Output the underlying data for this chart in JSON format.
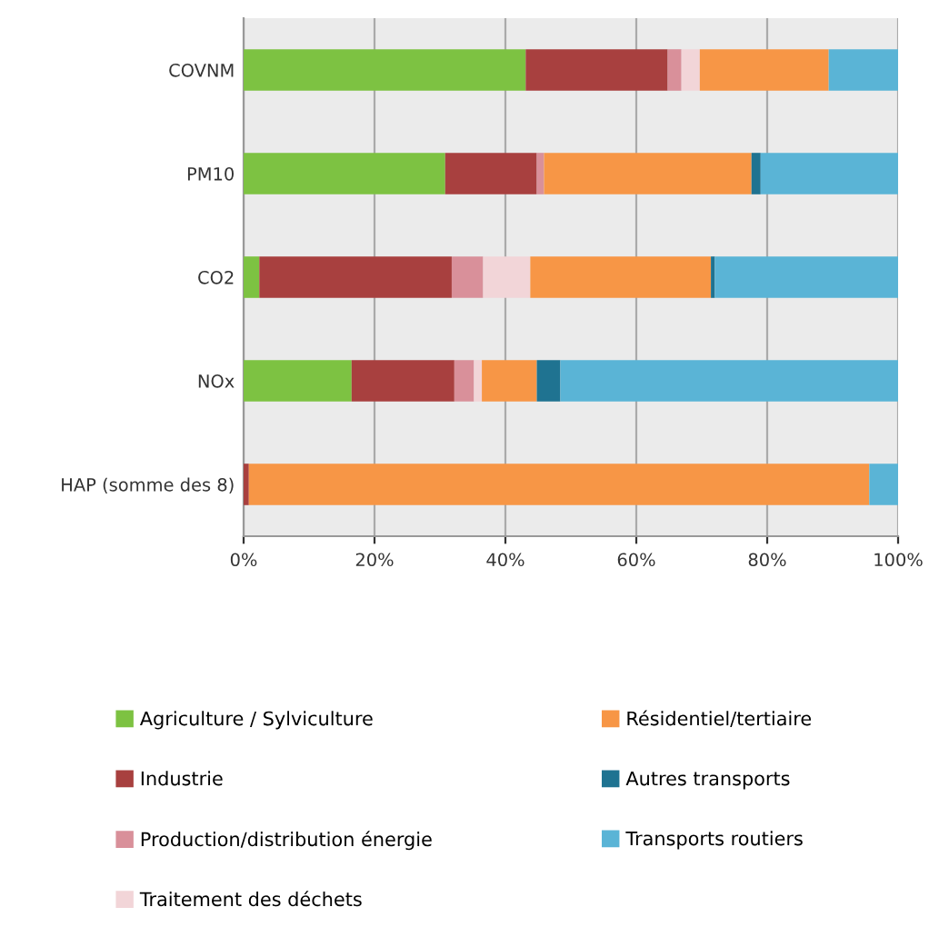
{
  "chart_data": {
    "type": "bar",
    "orientation": "horizontal",
    "stacked": true,
    "categories": [
      "COVNM",
      "PM10",
      "CO2",
      "NOx",
      "HAP (somme des 8)"
    ],
    "series": [
      {
        "name": "Agriculture / Sylviculture",
        "color": "#7dc242",
        "values": [
          43.1,
          30.8,
          2.4,
          16.5,
          0
        ]
      },
      {
        "name": "Industrie",
        "color": "#a8403f",
        "values": [
          21.7,
          14.0,
          29.4,
          15.7,
          0.8
        ]
      },
      {
        "name": "Production/distribution énergie",
        "color": "#d9909a",
        "values": [
          2.1,
          1.1,
          4.8,
          3.0,
          0
        ]
      },
      {
        "name": "Traitement des déchets",
        "color": "#f2d5d8",
        "values": [
          2.8,
          0,
          7.2,
          1.2,
          0
        ]
      },
      {
        "name": "Résidentiel/tertiaire",
        "color": "#f79646",
        "values": [
          19.7,
          31.7,
          27.6,
          8.4,
          94.8
        ]
      },
      {
        "name": "Autres transports",
        "color": "#1f7391",
        "values": [
          0,
          1.4,
          0.6,
          3.6,
          0
        ]
      },
      {
        "name": "Transports routiers",
        "color": "#5ab4d6",
        "values": [
          10.6,
          21.0,
          28.0,
          51.6,
          4.4
        ]
      }
    ],
    "xlim": [
      0,
      100
    ],
    "xticks": [
      {
        "value": 0,
        "label": "0%"
      },
      {
        "value": 20,
        "label": "20%"
      },
      {
        "value": 40,
        "label": "40%"
      },
      {
        "value": 60,
        "label": "60%"
      },
      {
        "value": 80,
        "label": "80%"
      },
      {
        "value": 100,
        "label": "100%"
      }
    ],
    "grid": "x",
    "legend": "bottom"
  }
}
